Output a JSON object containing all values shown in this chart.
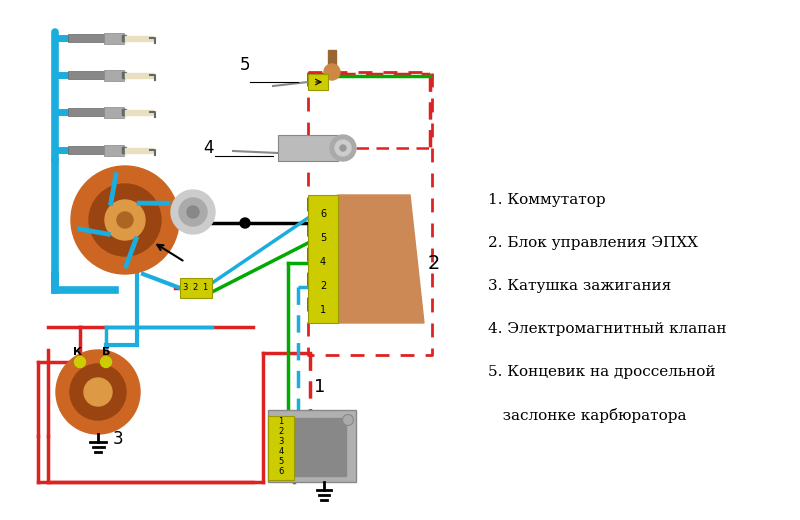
{
  "bg_color": "#ffffff",
  "legend_lines": [
    "1. Коммутатор",
    "2. Блок управления ЭПХХ",
    "3. Катушка зажигания",
    "4. Электромагнитный клапан",
    "5. Концевик на дроссельной",
    "   заслонке карбюратора"
  ],
  "cyan": "#1AADDD",
  "red": "#DD2222",
  "green": "#00AA00",
  "black": "#111111",
  "yellow": "#DDDD00",
  "gray": "#999999",
  "brown": "#996633",
  "orange": "#CC8833",
  "figsize": [
    8.0,
    5.2
  ],
  "dpi": 100
}
